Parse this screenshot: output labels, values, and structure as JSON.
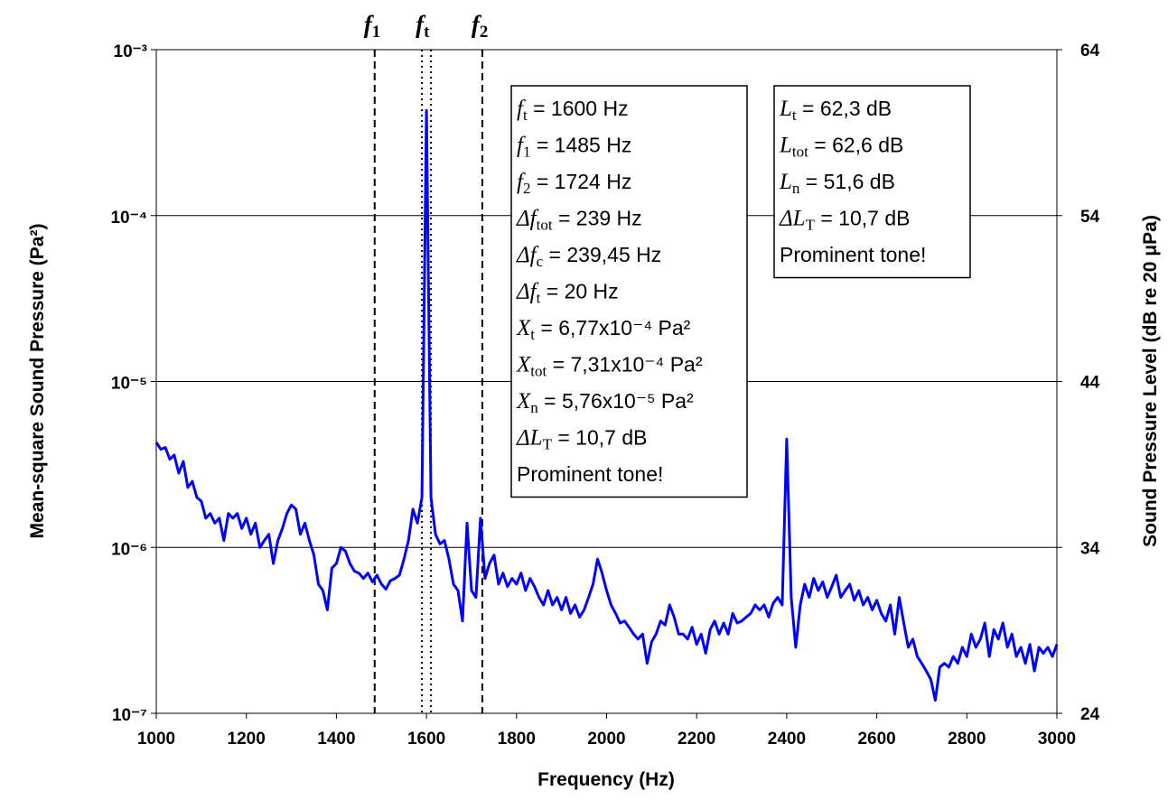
{
  "chart_data": {
    "type": "line",
    "xlabel": "Frequency (Hz)",
    "ylabel": "Mean-square Sound Pressure (Pa²)",
    "y2label": "Sound Pressure Level (dB re 20 μPa)",
    "xlim": [
      1000,
      3000
    ],
    "xticks": [
      1000,
      1200,
      1400,
      1600,
      1800,
      2000,
      2200,
      2400,
      2600,
      2800,
      3000
    ],
    "ylim": [
      1e-07,
      0.001
    ],
    "yscale": "log",
    "yticks": [
      {
        "value": 1e-07,
        "label": "10⁻⁷"
      },
      {
        "value": 1e-06,
        "label": "10⁻⁶"
      },
      {
        "value": 1e-05,
        "label": "10⁻⁵"
      },
      {
        "value": 0.0001,
        "label": "10⁻⁴"
      },
      {
        "value": 0.001,
        "label": "10⁻³"
      }
    ],
    "y2lim": [
      24,
      64
    ],
    "y2ticks": [
      24,
      34,
      44,
      54,
      64
    ],
    "grid": true,
    "markers": [
      {
        "symbol": "f",
        "sub": "1",
        "x": 1485,
        "style": "dashed"
      },
      {
        "symbol": "f",
        "sub": "t",
        "x": 1600,
        "width": 20,
        "style": "dotted"
      },
      {
        "symbol": "f",
        "sub": "2",
        "x": 1724,
        "style": "dashed"
      }
    ],
    "annotations": [
      {
        "lines": [
          {
            "symbol": "f",
            "sub": "t",
            "text": " = 1600 Hz"
          },
          {
            "symbol": "f",
            "sub": "1",
            "text": " = 1485 Hz"
          },
          {
            "symbol": "f",
            "sub": "2",
            "text": " = 1724 Hz"
          },
          {
            "symbol": "Δf",
            "sub": "tot",
            "text": " = 239 Hz"
          },
          {
            "symbol": "Δf",
            "sub": "c",
            "text": " = 239,45 Hz"
          },
          {
            "symbol": "Δf",
            "sub": "t",
            "text": " = 20 Hz"
          },
          {
            "symbol": "X",
            "sub": "t",
            "text": " = 6,77x10⁻⁴ Pa²"
          },
          {
            "symbol": "X",
            "sub": "tot",
            "text": " = 7,31x10⁻⁴ Pa²"
          },
          {
            "symbol": "X",
            "sub": "n",
            "text": " = 5,76x10⁻⁵ Pa²"
          },
          {
            "symbol": "ΔL",
            "sub": "T",
            "text": " = 10,7 dB"
          },
          {
            "text": "Prominent tone!"
          }
        ]
      },
      {
        "lines": [
          {
            "symbol": "L",
            "sub": "t",
            "text": " = 62,3 dB"
          },
          {
            "symbol": "L",
            "sub": "tot",
            "text": " = 62,6 dB"
          },
          {
            "symbol": "L",
            "sub": "n",
            "text": " = 51,6 dB"
          },
          {
            "symbol": "ΔL",
            "sub": "T",
            "text": " = 10,7 dB"
          },
          {
            "text": "Prominent tone!"
          }
        ]
      }
    ],
    "x": [
      1000,
      1010,
      1020,
      1030,
      1040,
      1050,
      1060,
      1070,
      1080,
      1090,
      1100,
      1110,
      1120,
      1130,
      1140,
      1150,
      1160,
      1170,
      1180,
      1190,
      1200,
      1210,
      1220,
      1230,
      1240,
      1250,
      1260,
      1270,
      1280,
      1290,
      1300,
      1310,
      1320,
      1330,
      1340,
      1350,
      1360,
      1370,
      1380,
      1390,
      1400,
      1410,
      1420,
      1430,
      1440,
      1450,
      1460,
      1470,
      1480,
      1490,
      1500,
      1510,
      1520,
      1530,
      1540,
      1550,
      1560,
      1570,
      1580,
      1590,
      1600,
      1610,
      1620,
      1630,
      1640,
      1650,
      1660,
      1670,
      1680,
      1690,
      1700,
      1710,
      1720,
      1730,
      1740,
      1750,
      1760,
      1770,
      1780,
      1790,
      1800,
      1810,
      1820,
      1830,
      1840,
      1850,
      1860,
      1870,
      1880,
      1890,
      1900,
      1910,
      1920,
      1930,
      1940,
      1950,
      1960,
      1970,
      1980,
      1990,
      2000,
      2010,
      2020,
      2030,
      2040,
      2050,
      2060,
      2070,
      2080,
      2090,
      2100,
      2110,
      2120,
      2130,
      2140,
      2150,
      2160,
      2170,
      2180,
      2190,
      2200,
      2210,
      2220,
      2230,
      2240,
      2250,
      2260,
      2270,
      2280,
      2290,
      2300,
      2310,
      2320,
      2330,
      2340,
      2350,
      2360,
      2370,
      2380,
      2390,
      2400,
      2410,
      2420,
      2430,
      2440,
      2450,
      2460,
      2470,
      2480,
      2490,
      2500,
      2510,
      2520,
      2530,
      2540,
      2550,
      2560,
      2570,
      2580,
      2590,
      2600,
      2610,
      2620,
      2630,
      2640,
      2650,
      2660,
      2670,
      2680,
      2690,
      2700,
      2710,
      2720,
      2730,
      2740,
      2750,
      2760,
      2770,
      2780,
      2790,
      2800,
      2810,
      2820,
      2830,
      2840,
      2850,
      2860,
      2870,
      2880,
      2890,
      2900,
      2910,
      2920,
      2930,
      2940,
      2950,
      2960,
      2970,
      2980,
      2990,
      3000
    ],
    "series": [
      {
        "color": "#0000ff",
        "values": [
          4.3e-06,
          3.9e-06,
          4e-06,
          3.4e-06,
          3.6e-06,
          2.8e-06,
          3.3e-06,
          2.3e-06,
          2.5e-06,
          2e-06,
          1.9e-06,
          1.5e-06,
          1.6e-06,
          1.4e-06,
          1.5e-06,
          1.1e-06,
          1.6e-06,
          1.5e-06,
          1.6e-06,
          1.3e-06,
          1.5e-06,
          1.2e-06,
          1.4e-06,
          1e-06,
          1.1e-06,
          1.2e-06,
          8e-07,
          1.1e-06,
          1.3e-06,
          1.6e-06,
          1.8e-06,
          1.7e-06,
          1.2e-06,
          1.4e-06,
          1.1e-06,
          9e-07,
          6e-07,
          5.5e-07,
          4.2e-07,
          7.5e-07,
          8e-07,
          1e-06,
          9.5e-07,
          8e-07,
          7.2e-07,
          7e-07,
          6.5e-07,
          7e-07,
          6.2e-07,
          6.8e-07,
          6e-07,
          5.6e-07,
          6.3e-07,
          6.5e-07,
          6.8e-07,
          8.5e-07,
          1.1e-06,
          1.7e-06,
          1.4e-06,
          2e-06,
          0.00043,
          2e-06,
          1.2e-06,
          1.05e-06,
          1.1e-06,
          8.5e-07,
          6e-07,
          5.5e-07,
          3.6e-07,
          1.4e-06,
          5.5e-07,
          5e-07,
          1.5e-06,
          6.5e-07,
          8e-07,
          9e-07,
          6e-07,
          7e-07,
          5.8e-07,
          6.5e-07,
          6e-07,
          7e-07,
          5.5e-07,
          6.5e-07,
          5.8e-07,
          5e-07,
          4.5e-07,
          5.5e-07,
          4.5e-07,
          5e-07,
          4.2e-07,
          5e-07,
          4e-07,
          4.5e-07,
          3.8e-07,
          4.2e-07,
          5e-07,
          6e-07,
          8.5e-07,
          7e-07,
          5.5e-07,
          4.5e-07,
          4e-07,
          3.5e-07,
          3.6e-07,
          3.3e-07,
          3e-07,
          2.8e-07,
          3e-07,
          2e-07,
          2.7e-07,
          3e-07,
          3.6e-07,
          3.4e-07,
          4.5e-07,
          3.8e-07,
          3e-07,
          3e-07,
          2.8e-07,
          3.3e-07,
          2.6e-07,
          3e-07,
          2.3e-07,
          3.2e-07,
          3.6e-07,
          3e-07,
          3.5e-07,
          3e-07,
          4e-07,
          3.5e-07,
          3.6e-07,
          3.8e-07,
          4e-07,
          4.5e-07,
          4.2e-07,
          4.5e-07,
          3.8e-07,
          4.6e-07,
          5e-07,
          4.5e-07,
          4.5e-06,
          5e-07,
          2.5e-07,
          4.5e-07,
          6e-07,
          5e-07,
          6.5e-07,
          5.5e-07,
          6.2e-07,
          5e-07,
          5.8e-07,
          6.8e-07,
          5e-07,
          5.5e-07,
          6e-07,
          4.8e-07,
          5.5e-07,
          4.5e-07,
          5e-07,
          4.2e-07,
          4.8e-07,
          4e-07,
          3.6e-07,
          4.5e-07,
          3e-07,
          5e-07,
          3.5e-07,
          2.5e-07,
          2.8e-07,
          2.2e-07,
          2e-07,
          1.8e-07,
          1.6e-07,
          1.2e-07,
          1.9e-07,
          2e-07,
          1.9e-07,
          2.2e-07,
          2e-07,
          2.5e-07,
          2.2e-07,
          3e-07,
          2.5e-07,
          2.8e-07,
          3.5e-07,
          2.2e-07,
          3.2e-07,
          2.8e-07,
          3.5e-07,
          2.5e-07,
          3e-07,
          2.2e-07,
          2.5e-07,
          2e-07,
          2.6e-07,
          1.8e-07,
          2.5e-07,
          2.3e-07,
          2.5e-07,
          2.2e-07,
          2.6e-07
        ]
      }
    ]
  }
}
